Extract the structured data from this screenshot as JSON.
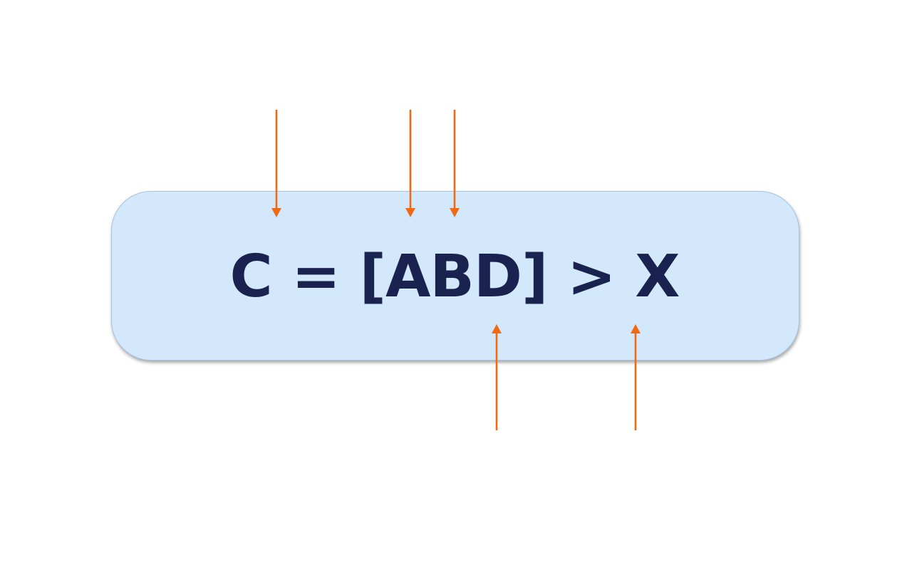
{
  "formula": {
    "text": "C = [ABD] > X"
  },
  "colors": {
    "box_fill": "#d4e8fc",
    "text": "#1a2250",
    "arrow": "#ef6a12"
  },
  "annotations": {
    "top_arrow_count": 3,
    "bottom_arrow_count": 2
  }
}
